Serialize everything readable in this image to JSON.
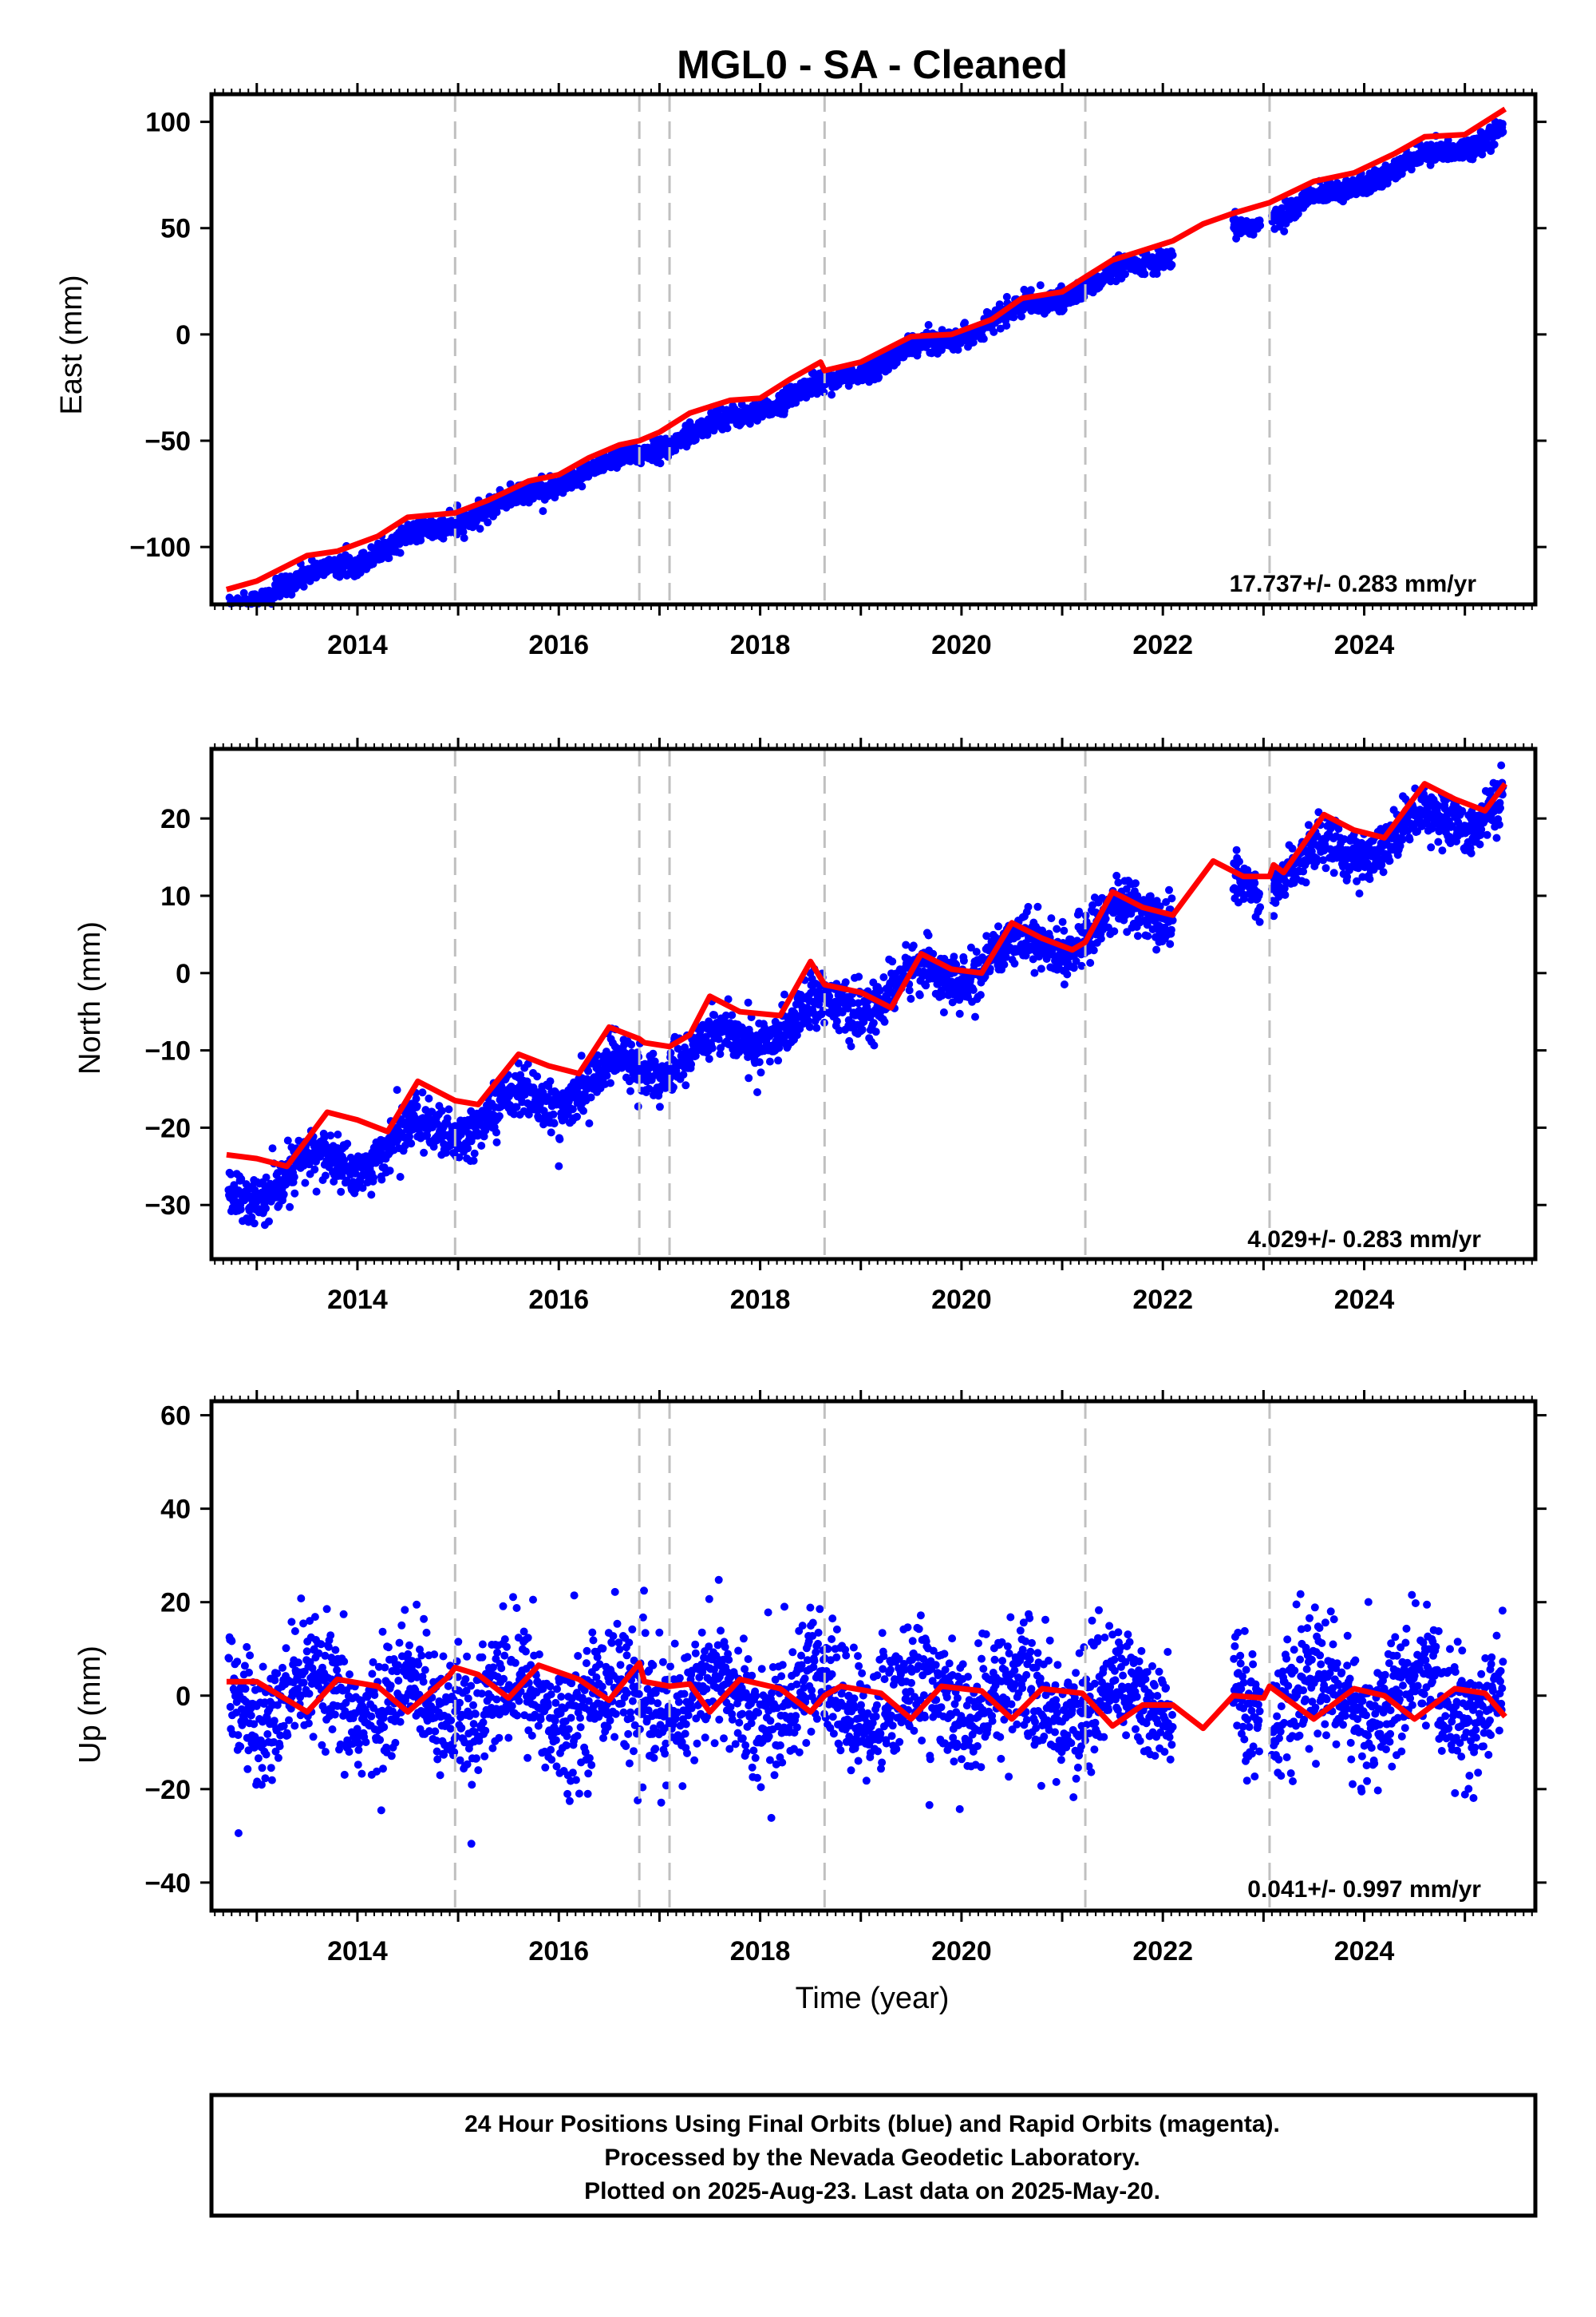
{
  "title": "MGL0  - SA - Cleaned",
  "xlabel": "Time (year)",
  "footer": {
    "line1": "24 Hour Positions Using Final Orbits (blue) and Rapid Orbits (magenta).",
    "line2": "Processed by the Nevada Geodetic Laboratory.",
    "line3": "Plotted on 2025-Aug-23. Last data on 2025-May-20."
  },
  "colors": {
    "points": "#0000ff",
    "model": "#ff0000",
    "offsets": "#c0c0c0",
    "frame": "#000000"
  },
  "chart_data": [
    {
      "type": "scatter",
      "ylabel": "East (mm)",
      "rate": "17.737+/- 0.283 mm/yr",
      "xlim": [
        2012.55,
        2025.7
      ],
      "ylim": [
        -127,
        113
      ],
      "xticks": [
        2014,
        2016,
        2018,
        2020,
        2022,
        2024
      ],
      "yticks": [
        -100,
        -50,
        0,
        50,
        100
      ],
      "offsets": [
        2014.97,
        2016.8,
        2017.1,
        2018.64,
        2021.23,
        2023.06
      ],
      "gaps": [
        [
          2022.1,
          2022.7
        ],
        [
          2022.97,
          2023.08
        ]
      ],
      "series": {
        "slope": 17.737,
        "ref_year": 2019.5,
        "ref_value": -8,
        "annual_amp": 2.2,
        "noise": 2.4,
        "outlier_prob": 0.01,
        "outlier_size": 8
      },
      "model_line": [
        [
          2012.7,
          -120
        ],
        [
          2013.0,
          -116
        ],
        [
          2013.5,
          -104
        ],
        [
          2013.8,
          -102
        ],
        [
          2014.2,
          -95
        ],
        [
          2014.5,
          -86
        ],
        [
          2014.97,
          -84
        ],
        [
          2015.3,
          -78
        ],
        [
          2015.7,
          -69
        ],
        [
          2016.0,
          -66
        ],
        [
          2016.3,
          -58
        ],
        [
          2016.6,
          -52
        ],
        [
          2016.8,
          -50
        ],
        [
          2017.0,
          -46
        ],
        [
          2017.3,
          -37
        ],
        [
          2017.7,
          -31
        ],
        [
          2018.0,
          -30
        ],
        [
          2018.3,
          -21
        ],
        [
          2018.6,
          -13
        ],
        [
          2018.64,
          -17
        ],
        [
          2019.0,
          -13
        ],
        [
          2019.5,
          -1
        ],
        [
          2019.9,
          0
        ],
        [
          2020.3,
          7
        ],
        [
          2020.6,
          17
        ],
        [
          2021.0,
          20
        ],
        [
          2021.23,
          27
        ],
        [
          2021.5,
          35
        ],
        [
          2021.9,
          41
        ],
        [
          2022.1,
          44
        ],
        [
          2022.4,
          52
        ],
        [
          2022.7,
          57
        ],
        [
          2023.06,
          62
        ],
        [
          2023.5,
          72
        ],
        [
          2023.9,
          76
        ],
        [
          2024.3,
          85
        ],
        [
          2024.6,
          93
        ],
        [
          2025.0,
          94
        ],
        [
          2025.4,
          106
        ]
      ]
    },
    {
      "type": "scatter",
      "ylabel": "North (mm)",
      "rate": "4.029+/- 0.283 mm/yr",
      "xlim": [
        2012.55,
        2025.7
      ],
      "ylim": [
        -37,
        29
      ],
      "xticks": [
        2014,
        2016,
        2018,
        2020,
        2022,
        2024
      ],
      "yticks": [
        -30,
        -20,
        -10,
        0,
        10,
        20
      ],
      "offsets": [
        2014.97,
        2016.8,
        2017.1,
        2018.64,
        2021.23,
        2023.06
      ],
      "gaps": [
        [
          2022.1,
          2022.7
        ],
        [
          2022.97,
          2023.08
        ]
      ],
      "series": {
        "slope": 4.029,
        "ref_year": 2019.5,
        "ref_value": -1.5,
        "annual_amp": 2.2,
        "noise": 1.6,
        "outlier_prob": 0.01,
        "outlier_size": 6
      },
      "model_line": [
        [
          2012.7,
          -23.5
        ],
        [
          2013.0,
          -24
        ],
        [
          2013.3,
          -25
        ],
        [
          2013.7,
          -18
        ],
        [
          2014.0,
          -19
        ],
        [
          2014.3,
          -20.5
        ],
        [
          2014.6,
          -14
        ],
        [
          2014.97,
          -16.5
        ],
        [
          2015.2,
          -17
        ],
        [
          2015.6,
          -10.5
        ],
        [
          2015.9,
          -12
        ],
        [
          2016.2,
          -13
        ],
        [
          2016.5,
          -7
        ],
        [
          2016.8,
          -8.5
        ],
        [
          2016.85,
          -9
        ],
        [
          2017.1,
          -9.5
        ],
        [
          2017.3,
          -8
        ],
        [
          2017.5,
          -3
        ],
        [
          2017.8,
          -5
        ],
        [
          2018.2,
          -5.5
        ],
        [
          2018.5,
          1.5
        ],
        [
          2018.64,
          -1.5
        ],
        [
          2019.0,
          -2.5
        ],
        [
          2019.3,
          -4.5
        ],
        [
          2019.6,
          2.5
        ],
        [
          2019.9,
          0.5
        ],
        [
          2020.2,
          0
        ],
        [
          2020.5,
          6.5
        ],
        [
          2020.8,
          4.5
        ],
        [
          2021.1,
          3
        ],
        [
          2021.23,
          4
        ],
        [
          2021.5,
          10.5
        ],
        [
          2021.8,
          8.5
        ],
        [
          2022.1,
          7.5
        ],
        [
          2022.5,
          14.5
        ],
        [
          2022.8,
          12.5
        ],
        [
          2023.06,
          12.5
        ],
        [
          2023.1,
          14
        ],
        [
          2023.2,
          13
        ],
        [
          2023.6,
          20.5
        ],
        [
          2023.9,
          18.5
        ],
        [
          2024.2,
          17.5
        ],
        [
          2024.6,
          24.5
        ],
        [
          2024.9,
          22.5
        ],
        [
          2025.2,
          21
        ],
        [
          2025.4,
          24.5
        ]
      ]
    },
    {
      "type": "scatter",
      "ylabel": "Up (mm)",
      "rate": "0.041+/- 0.997 mm/yr",
      "xlim": [
        2012.55,
        2025.7
      ],
      "ylim": [
        -46,
        63
      ],
      "xticks": [
        2014,
        2016,
        2018,
        2020,
        2022,
        2024
      ],
      "yticks": [
        -40,
        -20,
        0,
        20,
        40,
        60
      ],
      "offsets": [
        2014.97,
        2016.8,
        2017.1,
        2018.64,
        2021.23,
        2023.06
      ],
      "gaps": [
        [
          2022.1,
          2022.7
        ],
        [
          2022.97,
          2023.08
        ]
      ],
      "series": {
        "slope": 0.041,
        "ref_year": 2019.5,
        "ref_value": -1,
        "annual_amp": 4.5,
        "noise": 6.5,
        "outlier_prob": 0.02,
        "outlier_size": 20
      },
      "model_line": [
        [
          2012.7,
          3
        ],
        [
          2013.0,
          3
        ],
        [
          2013.5,
          -3.5
        ],
        [
          2013.8,
          3.5
        ],
        [
          2014.2,
          2
        ],
        [
          2014.5,
          -3.5
        ],
        [
          2014.9,
          4
        ],
        [
          2014.97,
          6
        ],
        [
          2015.2,
          4.5
        ],
        [
          2015.5,
          -0.5
        ],
        [
          2015.8,
          6.5
        ],
        [
          2016.2,
          3.5
        ],
        [
          2016.5,
          -1
        ],
        [
          2016.8,
          7
        ],
        [
          2016.85,
          3
        ],
        [
          2017.1,
          2
        ],
        [
          2017.3,
          2.5
        ],
        [
          2017.5,
          -3.5
        ],
        [
          2017.8,
          3.5
        ],
        [
          2018.2,
          1.5
        ],
        [
          2018.5,
          -3.5
        ],
        [
          2018.64,
          0
        ],
        [
          2018.8,
          2
        ],
        [
          2019.2,
          0.5
        ],
        [
          2019.5,
          -5
        ],
        [
          2019.8,
          2
        ],
        [
          2020.2,
          1
        ],
        [
          2020.5,
          -5
        ],
        [
          2020.8,
          1.5
        ],
        [
          2021.2,
          0.5
        ],
        [
          2021.5,
          -6.5
        ],
        [
          2021.8,
          -2
        ],
        [
          2022.1,
          -2
        ],
        [
          2022.4,
          -7
        ],
        [
          2022.7,
          0
        ],
        [
          2023.0,
          -0.5
        ],
        [
          2023.06,
          2
        ],
        [
          2023.5,
          -5
        ],
        [
          2023.9,
          1.5
        ],
        [
          2024.2,
          0
        ],
        [
          2024.5,
          -5
        ],
        [
          2024.9,
          1.5
        ],
        [
          2025.2,
          0.5
        ],
        [
          2025.4,
          -4.5
        ]
      ]
    }
  ]
}
